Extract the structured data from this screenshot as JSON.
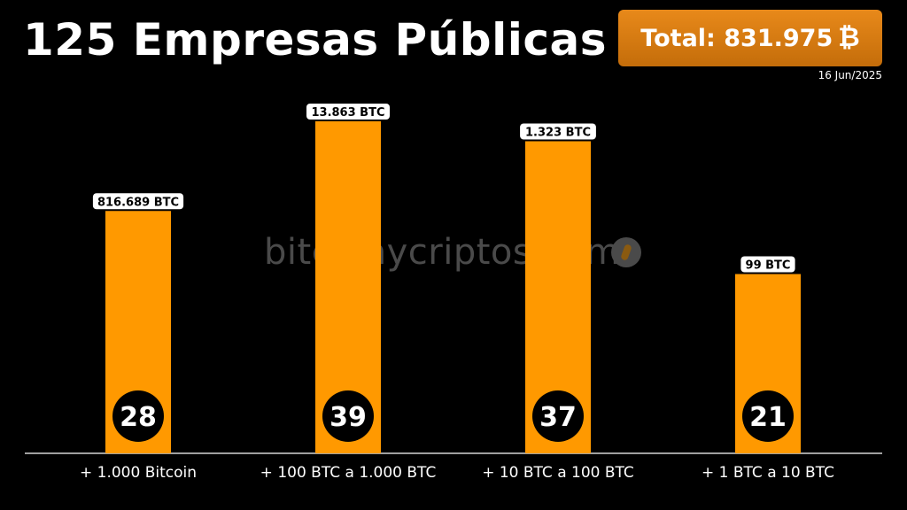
{
  "title": "125 Empresas Públicas",
  "total": {
    "label": "Total: 831.975",
    "icon": "bitcoin-icon"
  },
  "date": "16 Jun/2025",
  "watermark": "bitcoinycriptos.com",
  "colors": {
    "bar": "#ff9900",
    "background": "#000000",
    "total_box": "#d97a12"
  },
  "chart_data": {
    "type": "bar",
    "title": "125 Empresas Públicas",
    "categories": [
      "+ 1.000 Bitcoin",
      "+ 100 BTC a 1.000 BTC",
      "+ 10 BTC a 100 BTC",
      "+ 1 BTC a 10 BTC"
    ],
    "bar_labels": [
      "816.689 BTC",
      "13.863 BTC",
      "1.323 BTC",
      "99 BTC"
    ],
    "company_counts": [
      28,
      39,
      37,
      21
    ],
    "relative_heights": [
      0.73,
      1.0,
      0.94,
      0.54
    ],
    "grid": false
  }
}
